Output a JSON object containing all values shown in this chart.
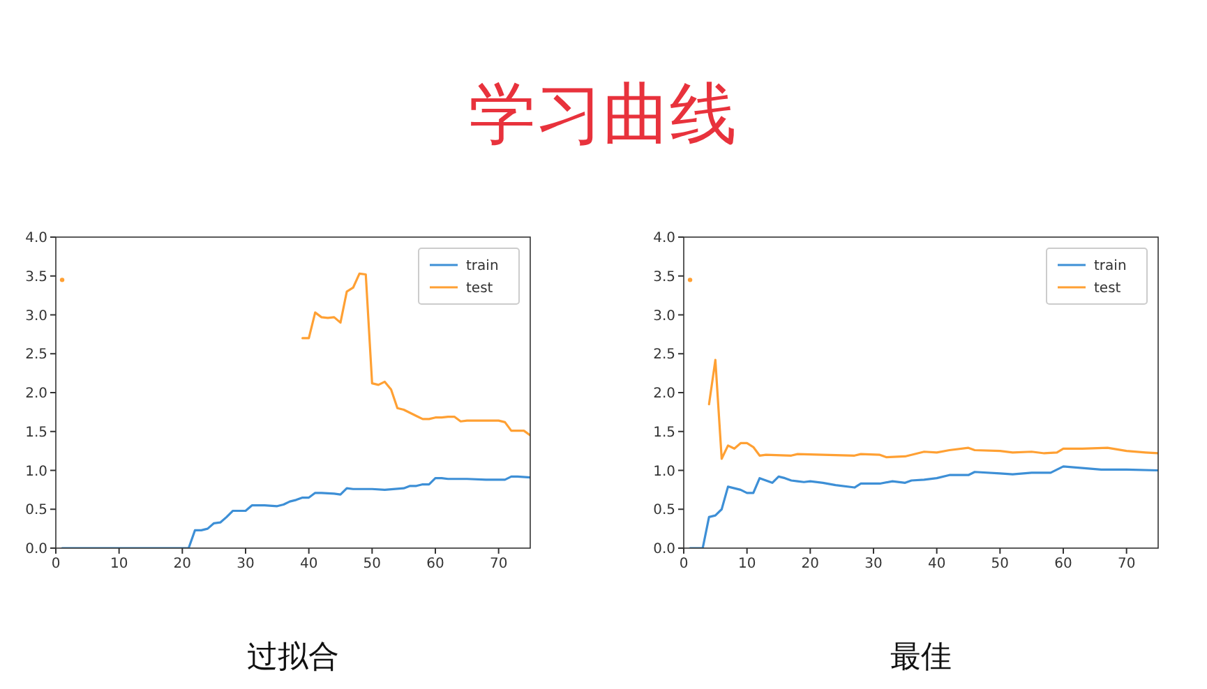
{
  "chart_data": [
    {
      "type": "other",
      "title": "学习曲线"
    },
    {
      "type": "line",
      "xlabel": "过拟合",
      "xlim": [
        0,
        75
      ],
      "xticks": [
        0,
        10,
        20,
        30,
        40,
        50,
        60,
        70
      ],
      "ylim": [
        0,
        4
      ],
      "yticks": [
        {
          "value": 0,
          "label": "0.0"
        },
        {
          "value": 0.5,
          "label": "0.5"
        },
        {
          "value": 1,
          "label": "1.0"
        },
        {
          "value": 1.5,
          "label": "1.5"
        },
        {
          "value": 2,
          "label": "2.0"
        },
        {
          "value": 2.5,
          "label": "2.5"
        },
        {
          "value": 3,
          "label": "3.0"
        },
        {
          "value": 3.5,
          "label": "3.5"
        },
        {
          "value": 4,
          "label": "4.0"
        }
      ],
      "grid": false,
      "legend": "top right",
      "series": [
        {
          "name": "train",
          "color": "#3d8fd6",
          "x": [
            1,
            21,
            22,
            23,
            24,
            25,
            26,
            27,
            28,
            29,
            30,
            31,
            32,
            33,
            35,
            36,
            37,
            38,
            39,
            40,
            41,
            42,
            44,
            45,
            46,
            47,
            50,
            52,
            55,
            56,
            57,
            58,
            59,
            60,
            61,
            62,
            65,
            68,
            71,
            72,
            73,
            75
          ],
          "values": [
            0,
            0,
            0.23,
            0.23,
            0.25,
            0.32,
            0.33,
            0.4,
            0.48,
            0.48,
            0.48,
            0.55,
            0.55,
            0.55,
            0.54,
            0.56,
            0.6,
            0.62,
            0.65,
            0.65,
            0.71,
            0.71,
            0.7,
            0.69,
            0.77,
            0.76,
            0.76,
            0.75,
            0.77,
            0.8,
            0.8,
            0.82,
            0.82,
            0.9,
            0.9,
            0.89,
            0.89,
            0.88,
            0.88,
            0.92,
            0.92,
            0.91
          ]
        },
        {
          "name": "test",
          "color": "#ffa033",
          "x": [
            1,
            2,
            38,
            39,
            40,
            41,
            42,
            43,
            44,
            45,
            46,
            47,
            48,
            49,
            50,
            51,
            52,
            53,
            54,
            55,
            56,
            57,
            58,
            59,
            60,
            61,
            62,
            63,
            64,
            65,
            70,
            71,
            72,
            73,
            74,
            75
          ],
          "values": [
            3.45,
            null,
            null,
            2.7,
            2.7,
            3.03,
            2.97,
            2.96,
            2.97,
            2.9,
            3.3,
            3.35,
            3.53,
            3.52,
            2.12,
            2.1,
            2.14,
            2.04,
            1.8,
            1.78,
            1.74,
            1.7,
            1.66,
            1.66,
            1.68,
            1.68,
            1.69,
            1.69,
            1.63,
            1.64,
            1.64,
            1.62,
            1.51,
            1.51,
            1.51,
            1.45
          ]
        }
      ]
    },
    {
      "type": "line",
      "xlabel": "最佳",
      "xlim": [
        0,
        75
      ],
      "xticks": [
        0,
        10,
        20,
        30,
        40,
        50,
        60,
        70
      ],
      "ylim": [
        0,
        4
      ],
      "yticks": [
        {
          "value": 0,
          "label": "0.0"
        },
        {
          "value": 0.5,
          "label": "0.5"
        },
        {
          "value": 1,
          "label": "1.0"
        },
        {
          "value": 1.5,
          "label": "1.5"
        },
        {
          "value": 2,
          "label": "2.0"
        },
        {
          "value": 2.5,
          "label": "2.5"
        },
        {
          "value": 3,
          "label": "3.0"
        },
        {
          "value": 3.5,
          "label": "3.5"
        },
        {
          "value": 4,
          "label": "4.0"
        }
      ],
      "grid": false,
      "legend": "top right",
      "series": [
        {
          "name": "train",
          "color": "#3d8fd6",
          "x": [
            1,
            2,
            3,
            4,
            5,
            6,
            7,
            8,
            9,
            10,
            11,
            12,
            13,
            14,
            15,
            16,
            17,
            18,
            19,
            20,
            22,
            24,
            27,
            28,
            31,
            33,
            35,
            36,
            38,
            40,
            42,
            45,
            46,
            50,
            52,
            55,
            58,
            60,
            63,
            66,
            70,
            75
          ],
          "values": [
            0,
            0,
            0,
            0.4,
            0.42,
            0.5,
            0.79,
            0.77,
            0.75,
            0.71,
            0.71,
            0.9,
            0.87,
            0.84,
            0.92,
            0.9,
            0.87,
            0.86,
            0.85,
            0.86,
            0.84,
            0.81,
            0.78,
            0.83,
            0.83,
            0.86,
            0.84,
            0.87,
            0.88,
            0.9,
            0.94,
            0.94,
            0.98,
            0.96,
            0.95,
            0.97,
            0.97,
            1.05,
            1.03,
            1.01,
            1.01,
            1.0
          ]
        },
        {
          "name": "test",
          "color": "#ffa033",
          "x": [
            1,
            2,
            3,
            4,
            5,
            6,
            7,
            8,
            9,
            10,
            11,
            12,
            13,
            17,
            18,
            22,
            27,
            28,
            31,
            32,
            35,
            38,
            40,
            42,
            45,
            46,
            50,
            52,
            55,
            57,
            59,
            60,
            63,
            67,
            70,
            73,
            75
          ],
          "values": [
            3.45,
            null,
            null,
            1.85,
            2.42,
            1.15,
            1.32,
            1.28,
            1.35,
            1.35,
            1.3,
            1.19,
            1.2,
            1.19,
            1.21,
            1.2,
            1.19,
            1.21,
            1.2,
            1.17,
            1.18,
            1.24,
            1.23,
            1.26,
            1.29,
            1.26,
            1.25,
            1.23,
            1.24,
            1.22,
            1.23,
            1.28,
            1.28,
            1.29,
            1.25,
            1.23,
            1.22
          ]
        }
      ]
    }
  ]
}
